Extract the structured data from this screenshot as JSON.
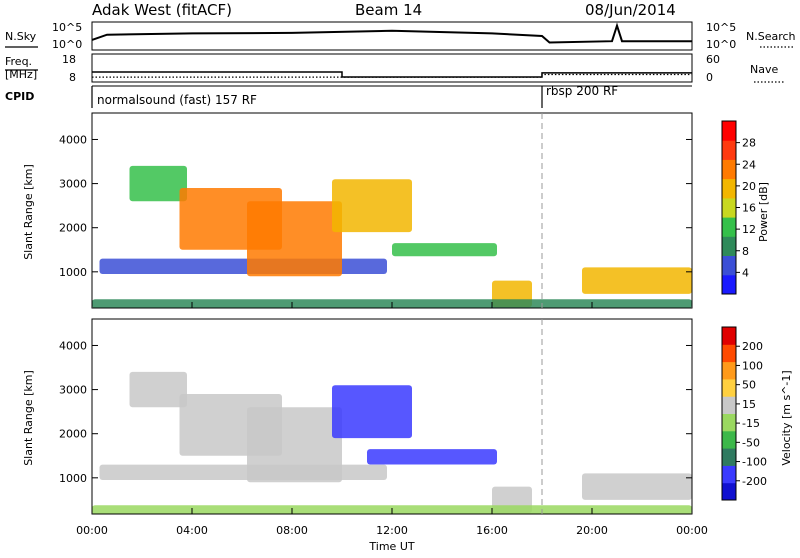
{
  "header": {
    "station": "Adak West (fitACF)",
    "beam": "Beam 14",
    "date": "08/Jun/2014"
  },
  "left_labels": {
    "nsky": "N.Sky",
    "freq_line1": "Freq.",
    "freq_line2": "[MHz]",
    "cpid": "CPID"
  },
  "right_labels": {
    "nsearch": "N.Search",
    "nave": "Nave"
  },
  "cpid_segments": [
    {
      "label": "normalsound (fast) 157 RF",
      "start_hour": 0
    },
    {
      "label": "rbsp 200 RF",
      "start_hour": 18
    }
  ],
  "colors": {
    "frame": "#000000",
    "power_scale": [
      "#1a1aff",
      "#3b4fd6",
      "#2f8a5a",
      "#35c04a",
      "#c8d820",
      "#f2b600",
      "#ff7a00",
      "#ff3a10",
      "#ff0000"
    ],
    "velocity_scale": [
      "#e00000",
      "#ff4a00",
      "#ff9a1a",
      "#ffd040",
      "#c8c8c8",
      "#9ad860",
      "#3cb84a",
      "#2f7a60",
      "#3a3aff",
      "#1010d0"
    ]
  },
  "chart_data": [
    {
      "type": "line",
      "name": "noise",
      "ylabel_left": "N.Sky",
      "ylabel_right": "N.Search",
      "left_ticks": [
        "10^5",
        "10^0"
      ],
      "right_ticks": [
        "10^5",
        "10^0"
      ],
      "x_range_hours": [
        0,
        24
      ],
      "sky_profile": [
        [
          0,
          0.35
        ],
        [
          0.6,
          0.55
        ],
        [
          4,
          0.6
        ],
        [
          8,
          0.62
        ],
        [
          12,
          0.7
        ],
        [
          16,
          0.6
        ],
        [
          18,
          0.5
        ],
        [
          18.3,
          0.25
        ],
        [
          20.8,
          0.3
        ],
        [
          21,
          0.9
        ],
        [
          21.2,
          0.3
        ],
        [
          24,
          0.3
        ]
      ]
    },
    {
      "type": "line",
      "name": "frequency",
      "ylabel_left": "Freq. [MHz]",
      "ylabel_right": "Nave",
      "left_ticks": [
        8,
        18
      ],
      "right_ticks": [
        0,
        60
      ],
      "freq_mhz": [
        [
          0,
          13
        ],
        [
          10,
          13
        ],
        [
          10,
          10.2
        ],
        [
          18,
          10.2
        ],
        [
          18,
          12.5
        ],
        [
          24,
          12.5
        ]
      ],
      "nave": [
        [
          0,
          9
        ],
        [
          18,
          9
        ],
        [
          18,
          15
        ],
        [
          24,
          15
        ]
      ]
    },
    {
      "type": "heatmap",
      "title": "",
      "ylabel": "Slant Range [km]",
      "y_ticks": [
        1000,
        2000,
        3000,
        4000
      ],
      "y_range_km": [
        180,
        4600
      ],
      "colorbar_label": "Power [dB]",
      "colorbar_ticks": [
        4,
        8,
        12,
        16,
        20,
        24,
        28
      ],
      "colorbar_range": [
        0,
        32
      ],
      "features": [
        {
          "name": "ground-scatter-band",
          "t0": 0.3,
          "t1": 11.8,
          "r0": 950,
          "r1": 1300,
          "level": 6
        },
        {
          "name": "band-1330",
          "t0": 12,
          "t1": 16.2,
          "r0": 1350,
          "r1": 1650,
          "level": 14
        },
        {
          "name": "arc-0230",
          "t0": 1.5,
          "t1": 3.8,
          "r0": 2600,
          "r1": 3400,
          "level": 12
        },
        {
          "name": "arc-0500",
          "t0": 3.5,
          "t1": 7.6,
          "r0": 1500,
          "r1": 2900,
          "level": 22
        },
        {
          "name": "arc-0730",
          "t0": 6.2,
          "t1": 10,
          "r0": 900,
          "r1": 2600,
          "level": 24
        },
        {
          "name": "patch-1130",
          "t0": 9.6,
          "t1": 12.8,
          "r0": 1900,
          "r1": 3100,
          "level": 18
        },
        {
          "name": "near-range-1630",
          "t0": 16,
          "t1": 17.6,
          "r0": 200,
          "r1": 800,
          "level": 20
        },
        {
          "name": "late-band",
          "t0": 19.6,
          "t1": 24,
          "r0": 500,
          "r1": 1100,
          "level": 18
        },
        {
          "name": "near-field",
          "t0": 0,
          "t1": 24,
          "r0": 180,
          "r1": 380,
          "level": 8
        }
      ]
    },
    {
      "type": "heatmap",
      "title": "",
      "ylabel": "Slant Range [km]",
      "y_ticks": [
        1000,
        2000,
        3000,
        4000
      ],
      "y_range_km": [
        180,
        4600
      ],
      "colorbar_label": "Velocity [m s^-1]",
      "colorbar_ticks": [
        200,
        100,
        50,
        15,
        -15,
        -50,
        -100,
        -200
      ],
      "colorbar_range": [
        -250,
        250
      ],
      "features": [
        {
          "name": "ground-scatter-band",
          "t0": 0.3,
          "t1": 11.8,
          "r0": 950,
          "r1": 1300,
          "level": 0
        },
        {
          "name": "band-1330",
          "t0": 11,
          "t1": 16.2,
          "r0": 1300,
          "r1": 1650,
          "level": -180
        },
        {
          "name": "arc-0230",
          "t0": 1.5,
          "t1": 3.8,
          "r0": 2600,
          "r1": 3400,
          "level": 0
        },
        {
          "name": "arc-0500",
          "t0": 3.5,
          "t1": 7.6,
          "r0": 1500,
          "r1": 2900,
          "level": 30
        },
        {
          "name": "arc-0730",
          "t0": 6.2,
          "t1": 10,
          "r0": 900,
          "r1": 2600,
          "level": 40
        },
        {
          "name": "patch-1130",
          "t0": 9.6,
          "t1": 12.8,
          "r0": 1900,
          "r1": 3100,
          "level": -200
        },
        {
          "name": "near-range-1630",
          "t0": 16,
          "t1": 17.6,
          "r0": 200,
          "r1": 800,
          "level": 0
        },
        {
          "name": "late-band",
          "t0": 19.6,
          "t1": 24,
          "r0": 500,
          "r1": 1100,
          "level": 0
        },
        {
          "name": "near-field",
          "t0": 0,
          "t1": 24,
          "r0": 180,
          "r1": 380,
          "level": -30
        }
      ]
    }
  ],
  "time_axis": {
    "label": "Time UT",
    "ticks": [
      "00:00",
      "04:00",
      "08:00",
      "12:00",
      "16:00",
      "20:00",
      "00:00"
    ],
    "range_hours": [
      0,
      24
    ]
  }
}
